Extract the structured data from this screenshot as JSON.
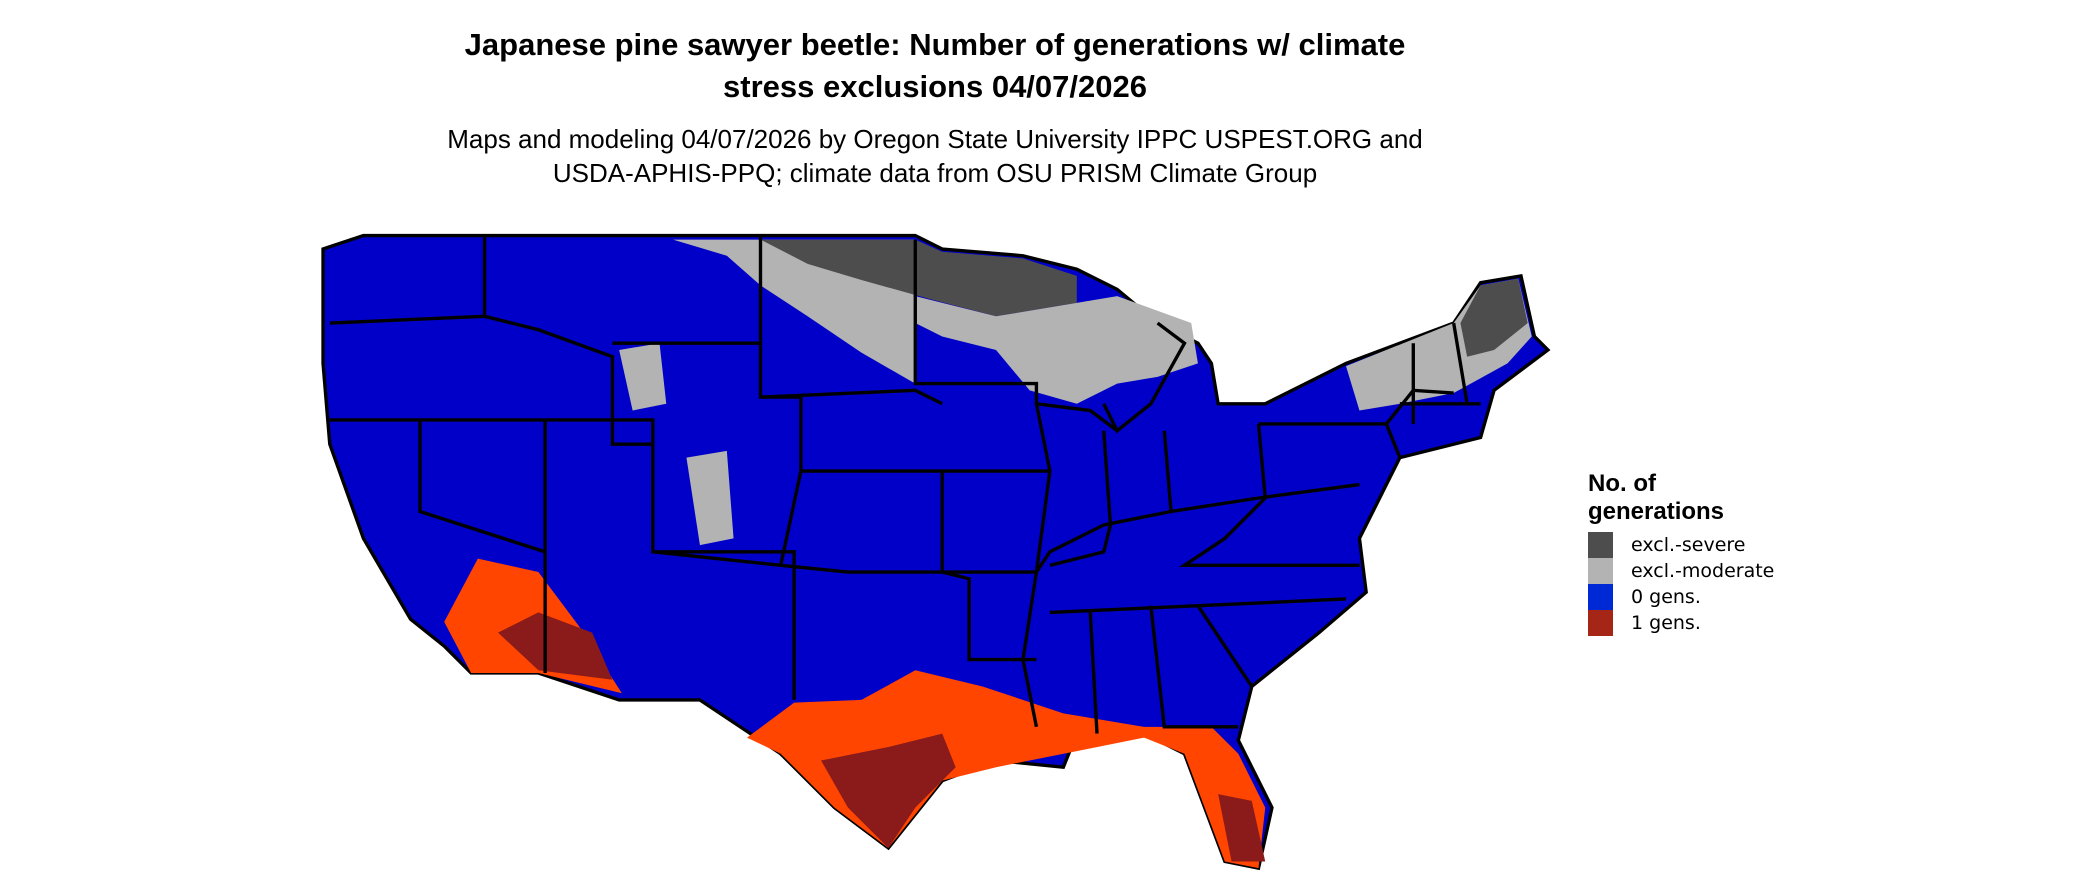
{
  "title_line1": "Japanese pine sawyer beetle: Number of generations w/ climate",
  "title_line2": "stress exclusions 04/07/2026",
  "subtitle_line1": "Maps and modeling 04/07/2026 by Oregon State University IPPC USPEST.ORG and",
  "subtitle_line2": "USDA-APHIS-PPQ; climate data from OSU PRISM Climate Group",
  "legend": {
    "title_line1": "No. of",
    "title_line2": "generations",
    "items": [
      {
        "label": "excl.-severe",
        "color": "#4d4d4d"
      },
      {
        "label": "excl.-moderate",
        "color": "#b3b3b3"
      },
      {
        "label": "0 gens.",
        "color": "#0029d6"
      },
      {
        "label": "1 gens.",
        "color": "#a52516"
      }
    ]
  },
  "map_colors": {
    "zero_gens_map": "#0000c8",
    "one_gen_light": "#ff4500",
    "one_gen_dark": "#8b1a1a",
    "excl_severe": "#4d4d4d",
    "excl_moderate": "#b3b3b3",
    "borders": "#000000"
  }
}
